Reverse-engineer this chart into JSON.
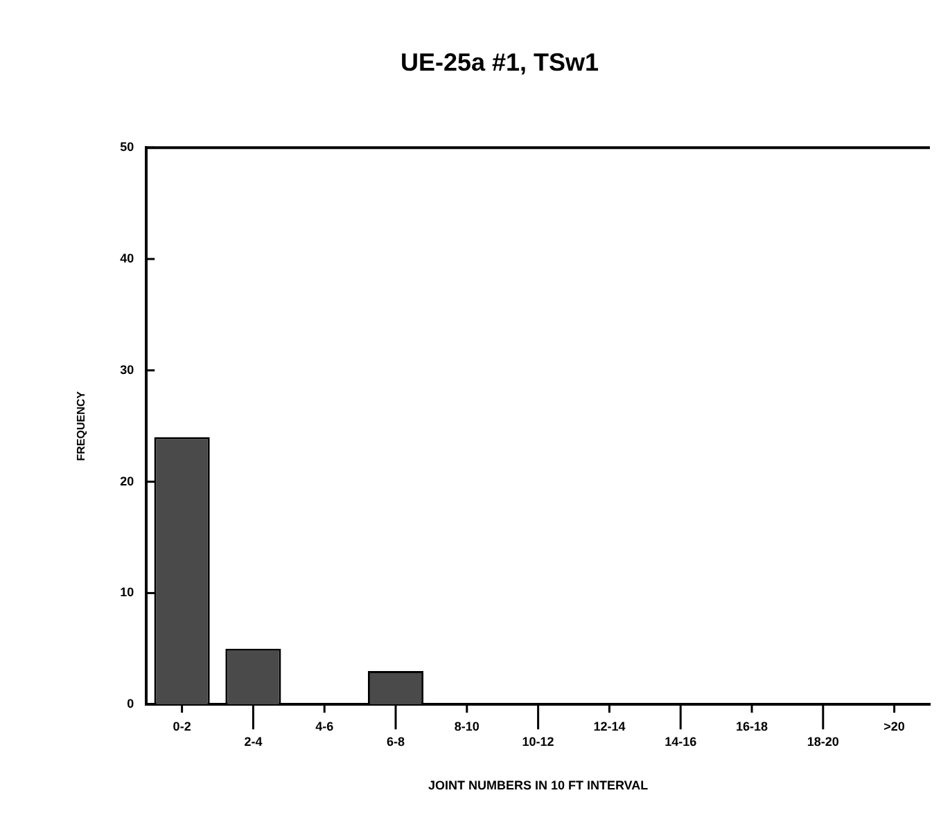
{
  "chart_data": {
    "type": "bar",
    "title": "UE-25a #1, TSw1",
    "xlabel": "JOINT NUMBERS IN 10 FT INTERVAL",
    "ylabel": "FREQUENCY",
    "categories": [
      "0-2",
      "2-4",
      "4-6",
      "6-8",
      "8-10",
      "10-12",
      "12-14",
      "14-16",
      "16-18",
      "18-20",
      ">20"
    ],
    "values": [
      24,
      5,
      0,
      3,
      0,
      0,
      0,
      0,
      0,
      0,
      0
    ],
    "color": "#4a4a4a",
    "ylim": [
      0,
      50
    ],
    "yticks": [
      0,
      10,
      20,
      30,
      40,
      50
    ],
    "grid": false
  }
}
